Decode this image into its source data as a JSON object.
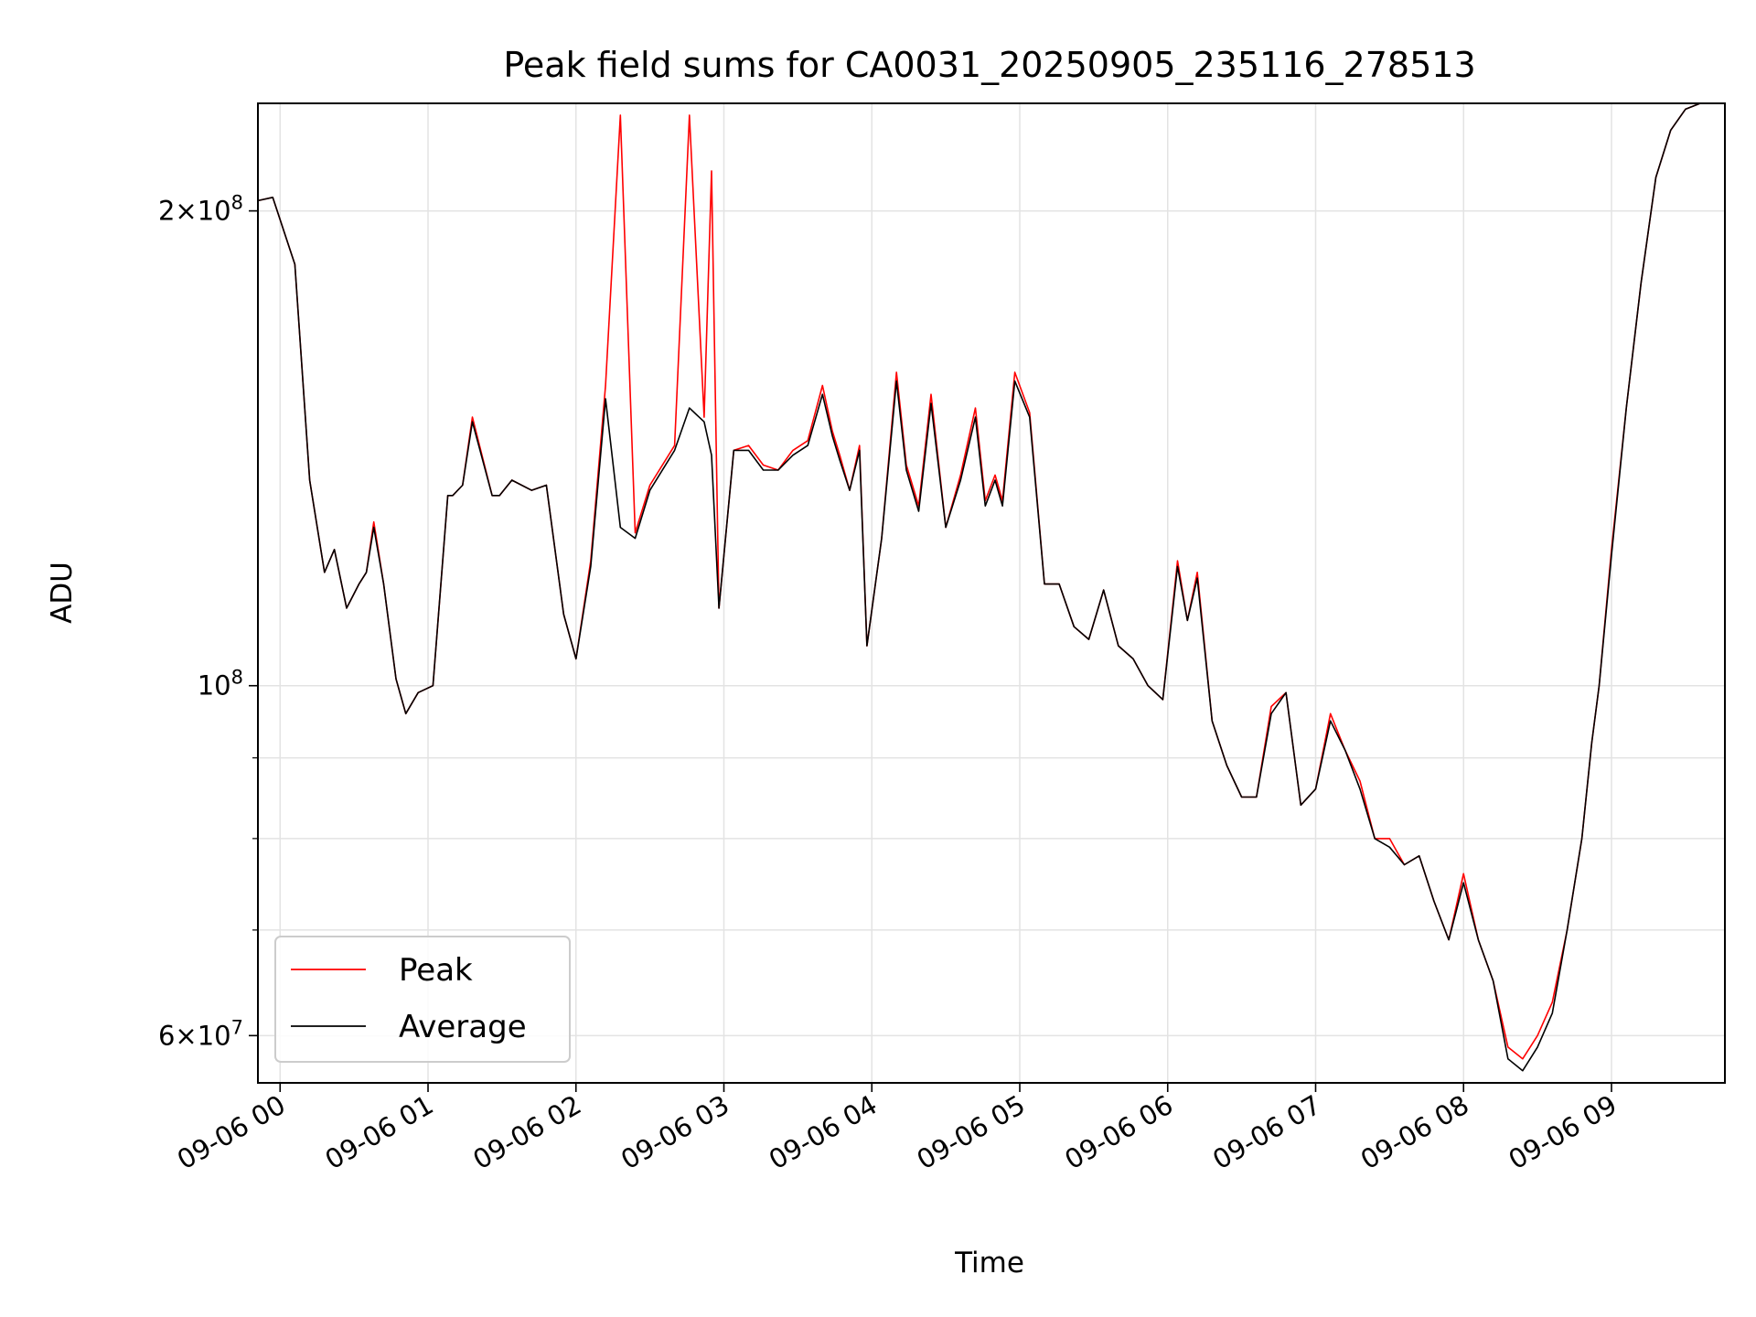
{
  "chart_data": {
    "type": "line",
    "title": "Peak field sums for CA0031_20250905_235116_278513",
    "xlabel": "Time",
    "ylabel": "ADU",
    "y_scale": "log",
    "grid": true,
    "legend_position": "lower-left",
    "xlim": [
      "09-05 23:51",
      "09-06 09:46"
    ],
    "ylim": [
      56000000,
      234000000
    ],
    "x_ticks": [
      "09-06 00",
      "09-06 01",
      "09-06 02",
      "09-06 03",
      "09-06 04",
      "09-06 05",
      "09-06 06",
      "09-06 07",
      "09-06 08",
      "09-06 09"
    ],
    "y_tick_labels": [
      {
        "value": 200000000,
        "base": "2×10",
        "exp": "8"
      },
      {
        "value": 100000000,
        "base": "10",
        "exp": "8"
      },
      {
        "value": 60000000,
        "base": "6×10",
        "exp": "7"
      }
    ],
    "y_minor_ticks": [
      70000000,
      80000000,
      90000000
    ],
    "x": [
      "09-05 23:51",
      "09-05 23:57",
      "09-06 00:06",
      "09-06 00:12",
      "09-06 00:18",
      "09-06 00:22",
      "09-06 00:27",
      "09-06 00:32",
      "09-06 00:35",
      "09-06 00:38",
      "09-06 00:42",
      "09-06 00:47",
      "09-06 00:51",
      "09-06 00:56",
      "09-06 01:02",
      "09-06 01:08",
      "09-06 01:10",
      "09-06 01:14",
      "09-06 01:18",
      "09-06 01:26",
      "09-06 01:29",
      "09-06 01:34",
      "09-06 01:42",
      "09-06 01:48",
      "09-06 01:55",
      "09-06 02:00",
      "09-06 02:06",
      "09-06 02:12",
      "09-06 02:18",
      "09-06 02:24",
      "09-06 02:30",
      "09-06 02:40",
      "09-06 02:46",
      "09-06 02:52",
      "09-06 02:55",
      "09-06 02:58",
      "09-06 03:04",
      "09-06 03:10",
      "09-06 03:16",
      "09-06 03:22",
      "09-06 03:28",
      "09-06 03:34",
      "09-06 03:40",
      "09-06 03:44",
      "09-06 03:47",
      "09-06 03:51",
      "09-06 03:55",
      "09-06 03:58",
      "09-06 04:04",
      "09-06 04:10",
      "09-06 04:14",
      "09-06 04:19",
      "09-06 04:24",
      "09-06 04:30",
      "09-06 04:36",
      "09-06 04:42",
      "09-06 04:46",
      "09-06 04:50",
      "09-06 04:53",
      "09-06 04:58",
      "09-06 05:04",
      "09-06 05:10",
      "09-06 05:16",
      "09-06 05:22",
      "09-06 05:28",
      "09-06 05:34",
      "09-06 05:40",
      "09-06 05:46",
      "09-06 05:52",
      "09-06 05:58",
      "09-06 06:04",
      "09-06 06:08",
      "09-06 06:12",
      "09-06 06:18",
      "09-06 06:24",
      "09-06 06:30",
      "09-06 06:36",
      "09-06 06:42",
      "09-06 06:48",
      "09-06 06:54",
      "09-06 07:00",
      "09-06 07:06",
      "09-06 07:12",
      "09-06 07:18",
      "09-06 07:24",
      "09-06 07:30",
      "09-06 07:36",
      "09-06 07:42",
      "09-06 07:48",
      "09-06 07:54",
      "09-06 08:00",
      "09-06 08:06",
      "09-06 08:12",
      "09-06 08:18",
      "09-06 08:24",
      "09-06 08:30",
      "09-06 08:36",
      "09-06 08:42",
      "09-06 08:48",
      "09-06 08:52",
      "09-06 08:55",
      "09-06 09:00",
      "09-06 09:06",
      "09-06 09:12",
      "09-06 09:18",
      "09-06 09:24",
      "09-06 09:30",
      "09-06 09:36",
      "09-06 09:42",
      "09-06 09:46"
    ],
    "series": [
      {
        "name": "Peak",
        "color": "#ff0000",
        "values": [
          203000000,
          204000000,
          185000000,
          135000000,
          118000000,
          122000000,
          112000000,
          116000000,
          118000000,
          127000000,
          116000000,
          101000000,
          96000000,
          99000000,
          100000000,
          132000000,
          132000000,
          134000000,
          148000000,
          132000000,
          132000000,
          135000000,
          133000000,
          134000000,
          111000000,
          104000000,
          120000000,
          155000000,
          230000000,
          125000000,
          134000000,
          142000000,
          230000000,
          148000000,
          212000000,
          112000000,
          141000000,
          142000000,
          138000000,
          137000000,
          141000000,
          143000000,
          155000000,
          145000000,
          140000000,
          133000000,
          142000000,
          106000000,
          124000000,
          158000000,
          138000000,
          130000000,
          153000000,
          126000000,
          136000000,
          150000000,
          131000000,
          136000000,
          131000000,
          158000000,
          149000000,
          116000000,
          116000000,
          109000000,
          107000000,
          115000000,
          106000000,
          104000000,
          100000000,
          98000000,
          120000000,
          110000000,
          118000000,
          95000000,
          89000000,
          85000000,
          85000000,
          97000000,
          99000000,
          84000000,
          86000000,
          96000000,
          91000000,
          87000000,
          80000000,
          80000000,
          77000000,
          78000000,
          73000000,
          69000000,
          76000000,
          69000000,
          65000000,
          59000000,
          58000000,
          60000000,
          63000000,
          70000000,
          80000000,
          92000000,
          100000000,
          122000000,
          150000000,
          180000000,
          210000000,
          225000000,
          232000000,
          234000000,
          234000000,
          234000000
        ]
      },
      {
        "name": "Average",
        "color": "#000000",
        "values": [
          203000000,
          204000000,
          185000000,
          135000000,
          118000000,
          122000000,
          112000000,
          116000000,
          118000000,
          126000000,
          116000000,
          101000000,
          96000000,
          99000000,
          100000000,
          132000000,
          132000000,
          134000000,
          147000000,
          132000000,
          132000000,
          135000000,
          133000000,
          134000000,
          111000000,
          104000000,
          119000000,
          152000000,
          126000000,
          124000000,
          133000000,
          141000000,
          150000000,
          147000000,
          140000000,
          112000000,
          141000000,
          141000000,
          137000000,
          137000000,
          140000000,
          142000000,
          153000000,
          144000000,
          139000000,
          133000000,
          141000000,
          106000000,
          124000000,
          156000000,
          137000000,
          129000000,
          151000000,
          126000000,
          135000000,
          148000000,
          130000000,
          135000000,
          130000000,
          156000000,
          148000000,
          116000000,
          116000000,
          109000000,
          107000000,
          115000000,
          106000000,
          104000000,
          100000000,
          98000000,
          119000000,
          110000000,
          117000000,
          95000000,
          89000000,
          85000000,
          85000000,
          96000000,
          99000000,
          84000000,
          86000000,
          95000000,
          91000000,
          86000000,
          80000000,
          79000000,
          77000000,
          78000000,
          73000000,
          69000000,
          75000000,
          69000000,
          65000000,
          58000000,
          57000000,
          59000000,
          62000000,
          70000000,
          80000000,
          92000000,
          100000000,
          121000000,
          150000000,
          180000000,
          210000000,
          225000000,
          232000000,
          234000000,
          234000000,
          234000000
        ]
      }
    ]
  }
}
